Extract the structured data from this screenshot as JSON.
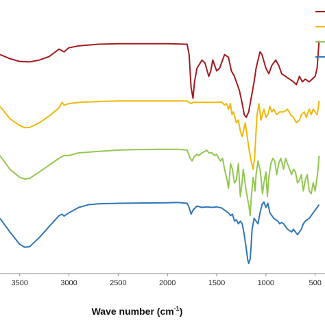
{
  "chart_data": {
    "type": "line",
    "title": "",
    "xlabel": "Wave number (cm",
    "xlabel_sup": "-1",
    "xlabel_close": ")",
    "ylabel": "",
    "x_axis_reversed": true,
    "xlim": [
      3700,
      400
    ],
    "ylim": [
      0,
      100
    ],
    "grid": false,
    "legend_position": "top-right",
    "x_ticks": [
      {
        "value": 3500,
        "label": "3500"
      },
      {
        "value": 3000,
        "label": "3000"
      },
      {
        "value": 2500,
        "label": "2500"
      },
      {
        "value": 2000,
        "label": "2000"
      },
      {
        "value": 1500,
        "label": "1500"
      },
      {
        "value": 1000,
        "label": "1000"
      },
      {
        "value": 500,
        "label": "500"
      }
    ],
    "series": [
      {
        "color": "#a31a1f",
        "points": [
          [
            3700,
            80
          ],
          [
            3600,
            78.5
          ],
          [
            3500,
            77.5
          ],
          [
            3400,
            77.3
          ],
          [
            3300,
            78
          ],
          [
            3200,
            79.3
          ],
          [
            3100,
            82
          ],
          [
            3050,
            81
          ],
          [
            3000,
            82.5
          ],
          [
            2900,
            83.2
          ],
          [
            2700,
            83.8
          ],
          [
            2500,
            84
          ],
          [
            2200,
            84
          ],
          [
            2000,
            84
          ],
          [
            1800,
            83.8
          ],
          [
            1780,
            80
          ],
          [
            1760,
            68
          ],
          [
            1740,
            64
          ],
          [
            1725,
            70
          ],
          [
            1700,
            75
          ],
          [
            1650,
            78
          ],
          [
            1620,
            77
          ],
          [
            1580,
            72
          ],
          [
            1560,
            74
          ],
          [
            1540,
            78
          ],
          [
            1500,
            74
          ],
          [
            1470,
            75
          ],
          [
            1420,
            80
          ],
          [
            1380,
            79
          ],
          [
            1350,
            74
          ],
          [
            1320,
            72
          ],
          [
            1300,
            70
          ],
          [
            1270,
            67
          ],
          [
            1240,
            62
          ],
          [
            1220,
            58
          ],
          [
            1200,
            57
          ],
          [
            1175,
            59
          ],
          [
            1150,
            64
          ],
          [
            1120,
            70
          ],
          [
            1100,
            75
          ],
          [
            1080,
            78
          ],
          [
            1060,
            81
          ],
          [
            1040,
            80
          ],
          [
            1000,
            75
          ],
          [
            970,
            73
          ],
          [
            940,
            76
          ],
          [
            900,
            78
          ],
          [
            870,
            76
          ],
          [
            840,
            73
          ],
          [
            800,
            72
          ],
          [
            760,
            71
          ],
          [
            720,
            70
          ],
          [
            690,
            69
          ],
          [
            660,
            72
          ],
          [
            630,
            70
          ],
          [
            600,
            71
          ],
          [
            560,
            70
          ],
          [
            530,
            71
          ],
          [
            500,
            72
          ],
          [
            480,
            75
          ],
          [
            470,
            80
          ],
          [
            460,
            85
          ]
        ]
      },
      {
        "color": "#f2b705",
        "points": [
          [
            3700,
            61
          ],
          [
            3600,
            56.5
          ],
          [
            3500,
            54
          ],
          [
            3450,
            53.2
          ],
          [
            3400,
            53.3
          ],
          [
            3300,
            55
          ],
          [
            3200,
            57.5
          ],
          [
            3100,
            60.5
          ],
          [
            3070,
            62.5
          ],
          [
            3050,
            61.5
          ],
          [
            3000,
            62
          ],
          [
            2900,
            62.5
          ],
          [
            2700,
            62.8
          ],
          [
            2500,
            63
          ],
          [
            2200,
            63
          ],
          [
            2000,
            63
          ],
          [
            1800,
            63
          ],
          [
            1760,
            62
          ],
          [
            1740,
            62.5
          ],
          [
            1700,
            62.5
          ],
          [
            1650,
            62.5
          ],
          [
            1600,
            62.5
          ],
          [
            1500,
            62.5
          ],
          [
            1450,
            62.6
          ],
          [
            1420,
            61.5
          ],
          [
            1400,
            62
          ],
          [
            1380,
            60
          ],
          [
            1360,
            62
          ],
          [
            1345,
            58
          ],
          [
            1330,
            59
          ],
          [
            1300,
            55
          ],
          [
            1280,
            56
          ],
          [
            1260,
            52
          ],
          [
            1240,
            50
          ],
          [
            1210,
            55
          ],
          [
            1190,
            50
          ],
          [
            1170,
            45
          ],
          [
            1150,
            41
          ],
          [
            1130,
            38
          ],
          [
            1115,
            42
          ],
          [
            1100,
            52
          ],
          [
            1090,
            58
          ],
          [
            1070,
            62
          ],
          [
            1050,
            56
          ],
          [
            1035,
            58
          ],
          [
            1020,
            60
          ],
          [
            1000,
            57
          ],
          [
            980,
            58
          ],
          [
            960,
            61
          ],
          [
            940,
            59
          ],
          [
            920,
            60
          ],
          [
            890,
            58
          ],
          [
            860,
            59
          ],
          [
            820,
            59
          ],
          [
            780,
            60
          ],
          [
            750,
            58
          ],
          [
            720,
            57
          ],
          [
            690,
            55
          ],
          [
            660,
            56
          ],
          [
            640,
            58
          ],
          [
            610,
            59
          ],
          [
            590,
            57
          ],
          [
            560,
            60
          ],
          [
            540,
            58
          ],
          [
            520,
            60
          ],
          [
            500,
            59
          ],
          [
            480,
            58
          ],
          [
            470,
            60
          ],
          [
            460,
            63
          ]
        ]
      },
      {
        "color": "#92c74f",
        "points": [
          [
            3700,
            43
          ],
          [
            3600,
            38
          ],
          [
            3500,
            35
          ],
          [
            3450,
            34.4
          ],
          [
            3400,
            34.6
          ],
          [
            3300,
            37
          ],
          [
            3200,
            39.5
          ],
          [
            3100,
            42
          ],
          [
            3050,
            43
          ],
          [
            3000,
            43
          ],
          [
            2900,
            44
          ],
          [
            2700,
            44.5
          ],
          [
            2500,
            45
          ],
          [
            2300,
            45.2
          ],
          [
            2200,
            45.2
          ],
          [
            2100,
            45.3
          ],
          [
            2000,
            45.3
          ],
          [
            1900,
            45.3
          ],
          [
            1800,
            45
          ],
          [
            1770,
            42
          ],
          [
            1750,
            41
          ],
          [
            1730,
            42.5
          ],
          [
            1700,
            43.5
          ],
          [
            1680,
            43
          ],
          [
            1650,
            44
          ],
          [
            1620,
            44.5
          ],
          [
            1600,
            45
          ],
          [
            1580,
            44
          ],
          [
            1550,
            44
          ],
          [
            1520,
            43
          ],
          [
            1500,
            43.5
          ],
          [
            1480,
            42
          ],
          [
            1460,
            41
          ],
          [
            1440,
            42
          ],
          [
            1420,
            38
          ],
          [
            1400,
            35
          ],
          [
            1380,
            31
          ],
          [
            1370,
            35
          ],
          [
            1360,
            40
          ],
          [
            1340,
            38
          ],
          [
            1320,
            33
          ],
          [
            1300,
            34
          ],
          [
            1280,
            40
          ],
          [
            1260,
            28
          ],
          [
            1245,
            32
          ],
          [
            1230,
            38
          ],
          [
            1200,
            30
          ],
          [
            1185,
            27
          ],
          [
            1170,
            24
          ],
          [
            1160,
            21
          ],
          [
            1150,
            27
          ],
          [
            1130,
            35
          ],
          [
            1120,
            33
          ],
          [
            1110,
            30
          ],
          [
            1100,
            36
          ],
          [
            1080,
            41
          ],
          [
            1060,
            38
          ],
          [
            1050,
            35
          ],
          [
            1035,
            29
          ],
          [
            1020,
            33
          ],
          [
            1000,
            37
          ],
          [
            985,
            28
          ],
          [
            970,
            35
          ],
          [
            950,
            40
          ],
          [
            930,
            42
          ],
          [
            910,
            41
          ],
          [
            890,
            36
          ],
          [
            870,
            40
          ],
          [
            850,
            42
          ],
          [
            820,
            38
          ],
          [
            800,
            42
          ],
          [
            780,
            40
          ],
          [
            760,
            38
          ],
          [
            740,
            36
          ],
          [
            720,
            38
          ],
          [
            700,
            37
          ],
          [
            680,
            33
          ],
          [
            660,
            34
          ],
          [
            640,
            36
          ],
          [
            620,
            30
          ],
          [
            600,
            34
          ],
          [
            580,
            36
          ],
          [
            560,
            30
          ],
          [
            540,
            29
          ],
          [
            520,
            33
          ],
          [
            500,
            30
          ],
          [
            480,
            35
          ],
          [
            470,
            38
          ],
          [
            460,
            43
          ]
        ]
      },
      {
        "color": "#2e75b6",
        "points": [
          [
            3700,
            20
          ],
          [
            3600,
            15
          ],
          [
            3500,
            10.5
          ],
          [
            3450,
            9.4
          ],
          [
            3400,
            9.6
          ],
          [
            3300,
            13
          ],
          [
            3200,
            17
          ],
          [
            3100,
            21
          ],
          [
            3070,
            21.5
          ],
          [
            3050,
            20.8
          ],
          [
            3000,
            22
          ],
          [
            2900,
            24
          ],
          [
            2800,
            25
          ],
          [
            2700,
            25.3
          ],
          [
            2500,
            25.5
          ],
          [
            2300,
            25.6
          ],
          [
            2000,
            25.7
          ],
          [
            1900,
            25.8
          ],
          [
            1800,
            25.5
          ],
          [
            1780,
            24
          ],
          [
            1760,
            21.5
          ],
          [
            1740,
            23
          ],
          [
            1700,
            24.5
          ],
          [
            1650,
            24
          ],
          [
            1600,
            24.2
          ],
          [
            1550,
            24
          ],
          [
            1500,
            24.2
          ],
          [
            1450,
            23.8
          ],
          [
            1420,
            23
          ],
          [
            1400,
            22.5
          ],
          [
            1380,
            22
          ],
          [
            1360,
            21
          ],
          [
            1340,
            21.5
          ],
          [
            1320,
            19
          ],
          [
            1300,
            19.5
          ],
          [
            1280,
            18
          ],
          [
            1260,
            19
          ],
          [
            1240,
            18
          ],
          [
            1220,
            14
          ],
          [
            1200,
            9
          ],
          [
            1185,
            5
          ],
          [
            1175,
            3.5
          ],
          [
            1160,
            5
          ],
          [
            1150,
            10
          ],
          [
            1140,
            16
          ],
          [
            1120,
            20
          ],
          [
            1100,
            19
          ],
          [
            1080,
            18
          ],
          [
            1060,
            22
          ],
          [
            1040,
            25
          ],
          [
            1020,
            26
          ],
          [
            1000,
            24
          ],
          [
            980,
            25.5
          ],
          [
            960,
            22
          ],
          [
            940,
            21
          ],
          [
            920,
            20
          ],
          [
            900,
            19.5
          ],
          [
            880,
            19
          ],
          [
            860,
            18
          ],
          [
            840,
            18.5
          ],
          [
            820,
            18
          ],
          [
            800,
            17
          ],
          [
            780,
            16
          ],
          [
            760,
            15.5
          ],
          [
            740,
            15
          ],
          [
            720,
            16
          ],
          [
            700,
            15
          ],
          [
            680,
            14
          ],
          [
            660,
            15
          ],
          [
            640,
            16
          ],
          [
            620,
            18
          ],
          [
            600,
            19
          ],
          [
            580,
            19.5
          ],
          [
            560,
            20
          ],
          [
            540,
            21
          ],
          [
            520,
            22
          ],
          [
            500,
            23
          ],
          [
            480,
            24
          ],
          [
            470,
            24.5
          ],
          [
            460,
            25
          ]
        ]
      }
    ]
  }
}
